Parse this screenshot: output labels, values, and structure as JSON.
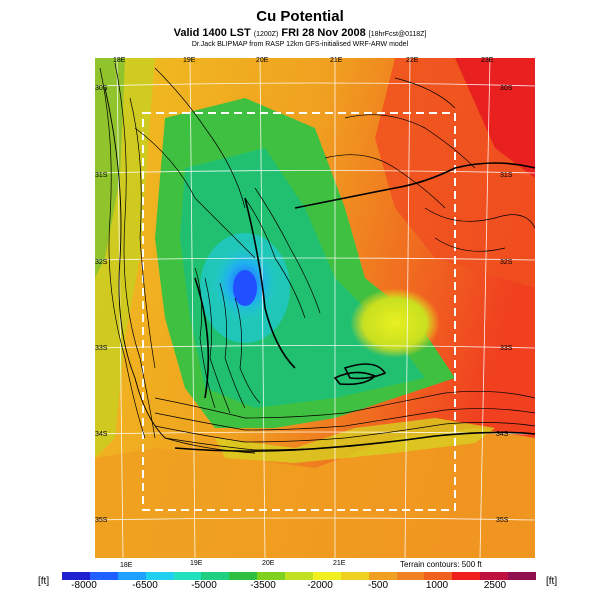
{
  "header": {
    "title": "Cu Potential",
    "line2_main": "Valid 1400 LST",
    "line2_code": "(1200Z)",
    "line2_date": "FRI 28 Nov 2008",
    "line2_fcst": "[18hrFcst@0118Z]",
    "line3": "Dr.Jack BLIPMAP from RASP 12km GFS-initialised WRF-ARW model"
  },
  "map": {
    "lon_labels_top": [
      "18E",
      "19E",
      "20E",
      "21E",
      "22E",
      "23E"
    ],
    "lon_labels_bottom": [
      "18E",
      "19E",
      "20E",
      "21E"
    ],
    "lat_labels_left": [
      "30S",
      "31S",
      "32S",
      "33S",
      "34S",
      "35S"
    ],
    "lat_labels_right": [
      "30S",
      "31S",
      "32S",
      "33S",
      "34S",
      "35S"
    ]
  },
  "terrain_label": "Terrain contours: 500 ft",
  "unit_left": "[ft]",
  "unit_right": "[ft]",
  "colorbar": {
    "ticks": [
      "-8000",
      "-6500",
      "-5000",
      "-3500",
      "-2000",
      "-500",
      "1000",
      "2500"
    ],
    "colors": [
      "#2020d0",
      "#2060ff",
      "#20a0ff",
      "#20d0f0",
      "#20e0c0",
      "#20d080",
      "#30c040",
      "#80d020",
      "#c0e020",
      "#f0f020",
      "#f0d020",
      "#f0a020",
      "#f08020",
      "#f06020",
      "#f02020",
      "#c01040",
      "#901050"
    ]
  }
}
